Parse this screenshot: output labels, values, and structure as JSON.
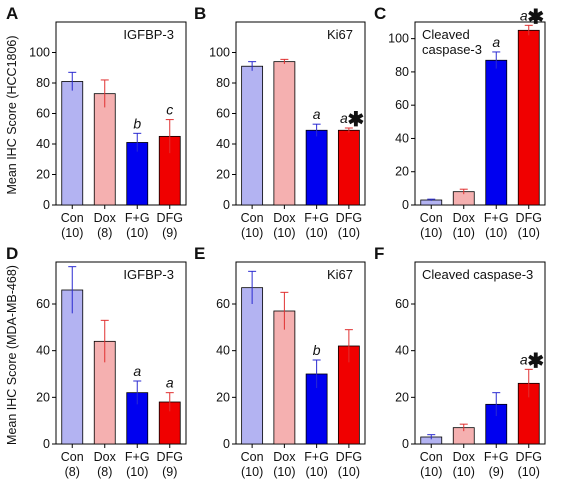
{
  "figure": {
    "row_ylabels": [
      "Mean IHC Score (HCC1806)",
      "Mean IHC Score (MDA-MB-468)"
    ]
  },
  "colors": {
    "Con": "#b3b3f2",
    "Dox": "#f5b0b0",
    "F+G": "#0000f0",
    "DFG": "#f00000",
    "err_blue": "#2a2ad0",
    "err_red": "#e03030"
  },
  "chart_data": [
    {
      "panel": "A",
      "type": "bar",
      "title": "IGFBP-3",
      "categories": [
        "Con",
        "Dox",
        "F+G",
        "DFG"
      ],
      "ns": [
        "(10)",
        "(8)",
        "(10)",
        "(9)"
      ],
      "values": [
        81,
        73,
        41,
        45
      ],
      "errors": [
        6,
        9,
        6,
        11
      ],
      "annotations": [
        "",
        "",
        "b",
        "c"
      ],
      "star": [
        false,
        false,
        false,
        false
      ],
      "ylim": [
        0,
        120
      ],
      "yticks": [
        0,
        20,
        40,
        60,
        80,
        100
      ]
    },
    {
      "panel": "B",
      "type": "bar",
      "title": "Ki67",
      "categories": [
        "Con",
        "Dox",
        "F+G",
        "DFG"
      ],
      "ns": [
        "(10)",
        "(10)",
        "(10)",
        "(10)"
      ],
      "values": [
        91,
        94,
        49,
        49
      ],
      "errors": [
        3,
        1.5,
        4,
        1.5
      ],
      "annotations": [
        "",
        "",
        "a",
        "a"
      ],
      "star": [
        false,
        false,
        false,
        true
      ],
      "ylim": [
        0,
        120
      ],
      "yticks": [
        0,
        20,
        40,
        60,
        80,
        100
      ]
    },
    {
      "panel": "C",
      "type": "bar",
      "title": "Cleaved caspase-3",
      "title_lines": [
        "Cleaved",
        "caspase-3"
      ],
      "categories": [
        "Con",
        "Dox",
        "F+G",
        "DFG"
      ],
      "ns": [
        "(10)",
        "(10)",
        "(10)",
        "(10)"
      ],
      "values": [
        3,
        8,
        87,
        105
      ],
      "errors": [
        0.5,
        1.5,
        5,
        3
      ],
      "annotations": [
        "",
        "",
        "a",
        "a"
      ],
      "star": [
        false,
        false,
        false,
        true
      ],
      "ylim": [
        0,
        110
      ],
      "yticks": [
        0,
        20,
        40,
        60,
        80,
        100
      ]
    },
    {
      "panel": "D",
      "type": "bar",
      "title": "IGFBP-3",
      "categories": [
        "Con",
        "Dox",
        "F+G",
        "DFG"
      ],
      "ns": [
        "(8)",
        "(8)",
        "(10)",
        "(9)"
      ],
      "values": [
        66,
        44,
        22,
        18
      ],
      "errors": [
        10,
        9,
        5,
        4
      ],
      "annotations": [
        "",
        "",
        "a",
        "a"
      ],
      "star": [
        false,
        false,
        false,
        false
      ],
      "ylim": [
        0,
        78
      ],
      "yticks": [
        0,
        20,
        40,
        60
      ]
    },
    {
      "panel": "E",
      "type": "bar",
      "title": "Ki67",
      "categories": [
        "Con",
        "Dox",
        "F+G",
        "DFG"
      ],
      "ns": [
        "(10)",
        "(10)",
        "(10)",
        "(10)"
      ],
      "values": [
        67,
        57,
        30,
        42
      ],
      "errors": [
        7,
        8,
        6,
        7
      ],
      "annotations": [
        "",
        "",
        "b",
        ""
      ],
      "star": [
        false,
        false,
        false,
        false
      ],
      "ylim": [
        0,
        78
      ],
      "yticks": [
        0,
        20,
        40,
        60
      ]
    },
    {
      "panel": "F",
      "type": "bar",
      "title": "Cleaved caspase-3",
      "categories": [
        "Con",
        "Dox",
        "F+G",
        "DFG"
      ],
      "ns": [
        "(10)",
        "(10)",
        "(9)",
        "(10)"
      ],
      "values": [
        3,
        7,
        17,
        26
      ],
      "errors": [
        1,
        1.5,
        5,
        6
      ],
      "annotations": [
        "",
        "",
        "",
        "a"
      ],
      "star": [
        false,
        false,
        false,
        true
      ],
      "ylim": [
        0,
        78
      ],
      "yticks": [
        0,
        20,
        40,
        60
      ]
    }
  ]
}
